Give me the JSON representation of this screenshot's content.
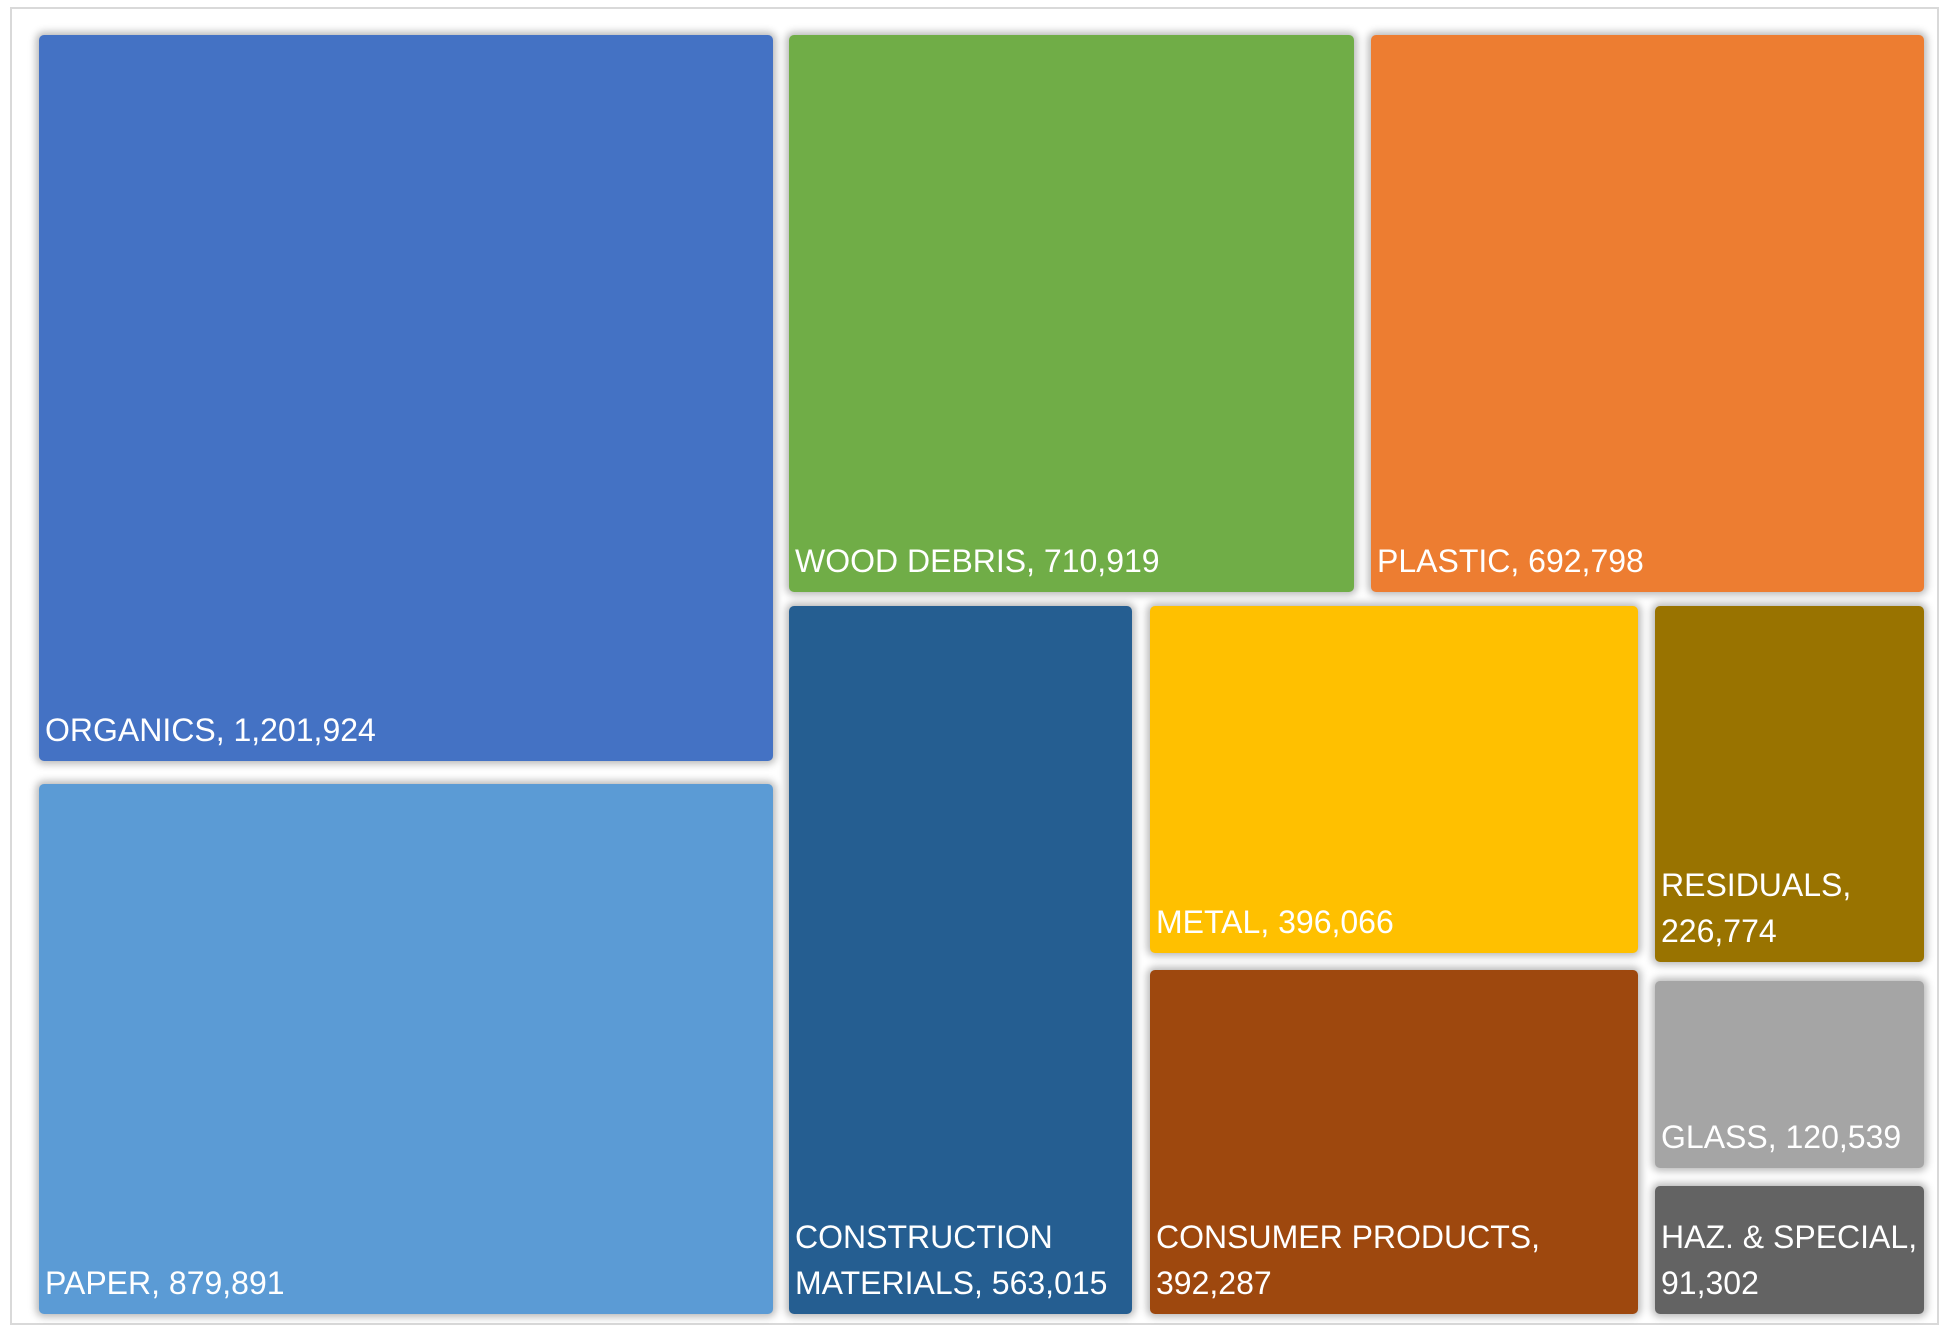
{
  "chart_data": {
    "type": "treemap",
    "items": [
      {
        "category": "ORGANICS",
        "value": 1201924,
        "label": "ORGANICS,  1,201,924",
        "color": "#4472C4"
      },
      {
        "category": "PAPER",
        "value": 879891,
        "label": "PAPER,  879,891",
        "color": "#5B9BD5"
      },
      {
        "category": "WOOD DEBRIS",
        "value": 710919,
        "label": "WOOD DEBRIS,  710,919",
        "color": "#70AD47"
      },
      {
        "category": "PLASTIC",
        "value": 692798,
        "label": "PLASTIC,  692,798",
        "color": "#ED7D31"
      },
      {
        "category": "CONSTRUCTION MATERIALS",
        "value": 563015,
        "label": "CONSTRUCTION\nMATERIALS,  563,015",
        "color": "#255E91"
      },
      {
        "category": "METAL",
        "value": 396066,
        "label": "METAL,  396,066",
        "color": "#FFC000"
      },
      {
        "category": "CONSUMER PRODUCTS",
        "value": 392287,
        "label": "CONSUMER PRODUCTS,\n392,287",
        "color": "#9E480E"
      },
      {
        "category": "RESIDUALS",
        "value": 226774,
        "label": "RESIDUALS,\n226,774",
        "color": "#997300"
      },
      {
        "category": "GLASS",
        "value": 120539,
        "label": "GLASS,  120,539",
        "color": "#A5A5A5"
      },
      {
        "category": "HAZ. & SPECIAL",
        "value": 91302,
        "label": "HAZ. & SPECIAL,\n91,302",
        "color": "#636363"
      }
    ]
  }
}
